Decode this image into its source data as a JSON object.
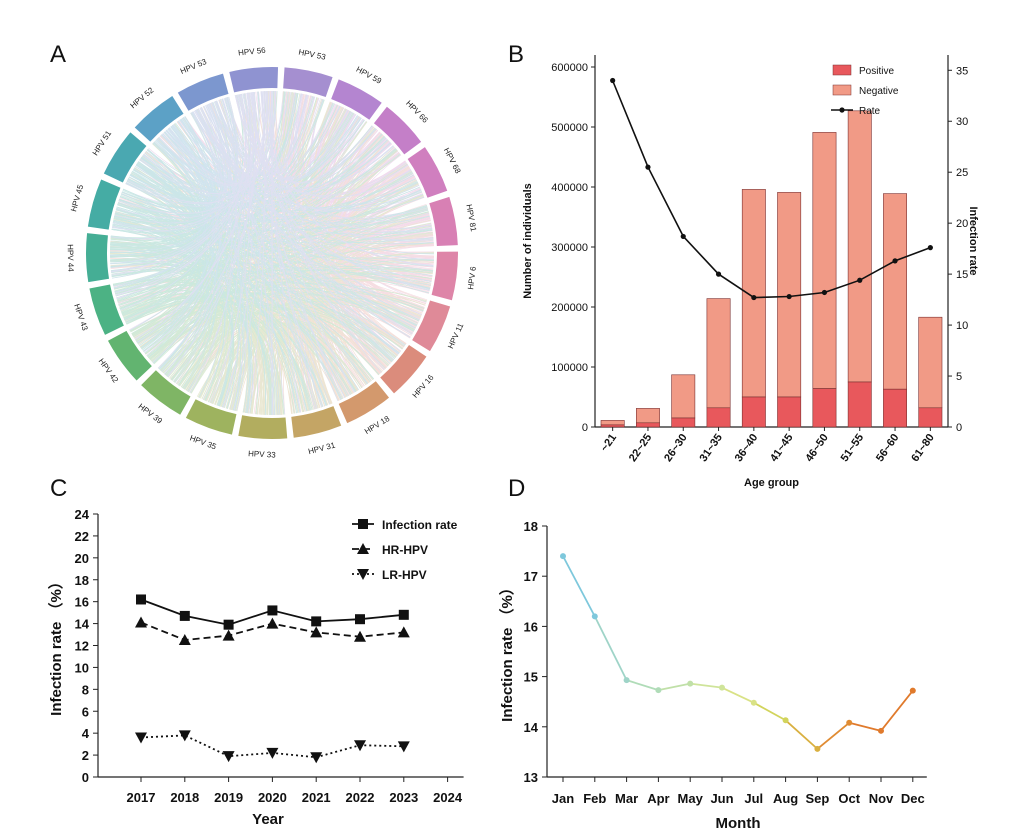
{
  "panels": {
    "a_label": "A",
    "b_label": "B",
    "c_label": "C",
    "d_label": "D"
  },
  "chart_data": [
    {
      "panel": "A",
      "type": "chord",
      "sectors": [
        {
          "name": "HPV 53",
          "color": "#a58fd0"
        },
        {
          "name": "HPV 59",
          "color": "#b485d0"
        },
        {
          "name": "HPV 66",
          "color": "#c47fc8"
        },
        {
          "name": "HPV 68",
          "color": "#d07fbf"
        },
        {
          "name": "HPV 81",
          "color": "#d880b4"
        },
        {
          "name": "HPV 6",
          "color": "#de85a8"
        },
        {
          "name": "HPV 11",
          "color": "#df8a98"
        },
        {
          "name": "HPV 16",
          "color": "#db8c7c"
        },
        {
          "name": "HPV 18",
          "color": "#d3996d"
        },
        {
          "name": "HPV 31",
          "color": "#c4a565"
        },
        {
          "name": "HPV 33",
          "color": "#b2ad5f"
        },
        {
          "name": "HPV 35",
          "color": "#9eb35f"
        },
        {
          "name": "HPV 39",
          "color": "#7fb565"
        },
        {
          "name": "HPV 42",
          "color": "#62b470"
        },
        {
          "name": "HPV 43",
          "color": "#4cb284"
        },
        {
          "name": "HPV 44",
          "color": "#45ae95"
        },
        {
          "name": "HPV 45",
          "color": "#45aca4"
        },
        {
          "name": "HPV 51",
          "color": "#4aa8b1"
        },
        {
          "name": "HPV 52",
          "color": "#5ca1c6"
        },
        {
          "name": "HPV 53",
          "color": "#7c97cf"
        },
        {
          "name": "HPV 56",
          "color": "#8f93d1"
        }
      ]
    },
    {
      "panel": "B",
      "type": "bar",
      "categories": [
        "~21",
        "22~25",
        "26~30",
        "31~35",
        "36~40",
        "41~45",
        "46~50",
        "51~55",
        "56~60",
        "61~80"
      ],
      "series": [
        {
          "name": "Positive",
          "values": [
            3500,
            7000,
            15000,
            32000,
            50000,
            50000,
            64000,
            75000,
            63000,
            32000
          ],
          "color": "#e8585c"
        },
        {
          "name": "Negative",
          "values": [
            7500,
            24000,
            72000,
            182000,
            346000,
            341000,
            427000,
            452000,
            326000,
            151000
          ],
          "color": "#f19a86"
        },
        {
          "name": "Rate",
          "values": [
            34.0,
            25.5,
            18.7,
            15.0,
            12.7,
            12.8,
            13.2,
            14.4,
            16.3,
            17.6
          ],
          "axis": "right",
          "color": "#111111"
        }
      ],
      "xlabel": "Age group",
      "ylabel": "Number of individuals",
      "ylabel_right": "Infection rate",
      "ylim": [
        0,
        620000
      ],
      "ylim_right": [
        0,
        36.5
      ],
      "yticks": [
        "0",
        "100000",
        "200000",
        "300000",
        "400000",
        "500000",
        "600000"
      ],
      "yticks_right": [
        "0",
        "5",
        "10",
        "15",
        "20",
        "25",
        "30",
        "35"
      ],
      "legend": "top-right"
    },
    {
      "panel": "C",
      "type": "line",
      "x": [
        "2017",
        "2018",
        "2019",
        "2020",
        "2021",
        "2022",
        "2023"
      ],
      "xticks": [
        "2017",
        "2018",
        "2019",
        "2020",
        "2021",
        "2022",
        "2023",
        "2024"
      ],
      "series": [
        {
          "name": "Infection rate",
          "values": [
            16.2,
            14.7,
            13.9,
            15.2,
            14.2,
            14.4,
            14.8
          ],
          "marker": "square",
          "line": "solid"
        },
        {
          "name": "HR-HPV",
          "values": [
            14.1,
            12.5,
            12.9,
            14.0,
            13.2,
            12.8,
            13.2
          ],
          "marker": "triangle-up",
          "line": "dashed"
        },
        {
          "name": "LR-HPV",
          "values": [
            3.6,
            3.8,
            1.9,
            2.2,
            1.8,
            2.9,
            2.8
          ],
          "marker": "triangle-down",
          "line": "dotted"
        }
      ],
      "xlabel": "Year",
      "ylabel": "Infection rate （%）",
      "ylim": [
        0,
        24
      ],
      "yticks": [
        "0",
        "2",
        "4",
        "6",
        "8",
        "10",
        "12",
        "14",
        "16",
        "18",
        "20",
        "22",
        "24"
      ],
      "legend": "top-right"
    },
    {
      "panel": "D",
      "type": "line",
      "categories": [
        "Jan",
        "Feb",
        "Mar",
        "Apr",
        "May",
        "Jun",
        "Jul",
        "Aug",
        "Sep",
        "Oct",
        "Nov",
        "Dec"
      ],
      "values": [
        17.4,
        16.2,
        14.93,
        14.73,
        14.86,
        14.78,
        14.48,
        14.13,
        13.56,
        14.08,
        13.92,
        14.72
      ],
      "colors": [
        "#7ec8dc",
        "#7ec8dc",
        "#9fd4c8",
        "#b0dcb8",
        "#c0e0a8",
        "#cfe49a",
        "#d9e286",
        "#d2d45c",
        "#d9b040",
        "#e08b32",
        "#e07a2c",
        "#e07a2c"
      ],
      "xlabel": "Month",
      "ylabel": "Infection rate （%）",
      "ylim": [
        13,
        18
      ],
      "yticks": [
        "13",
        "14",
        "15",
        "16",
        "17",
        "18"
      ]
    }
  ]
}
